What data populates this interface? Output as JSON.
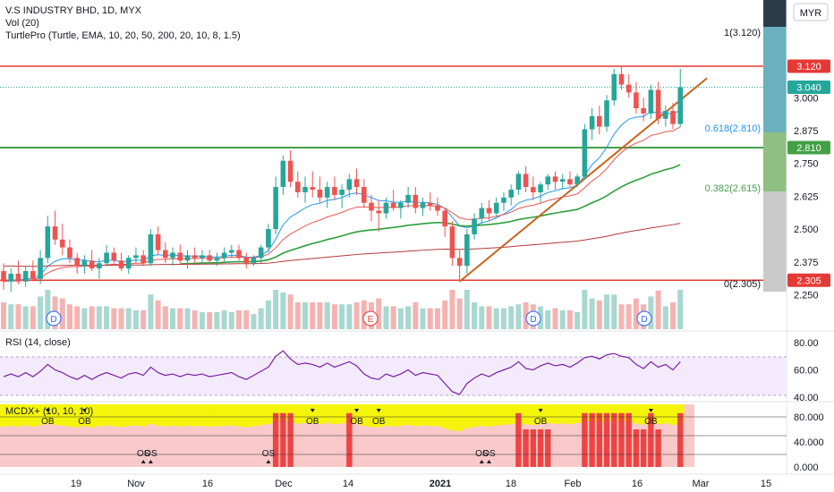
{
  "header": {
    "title": "V.S INDUSTRY BHD, 1D, MYX",
    "vol_label": "Vol (20)",
    "turtle_label": "TurtlePro (Turtle, EMA, 10, 20, 50, 200, 20, 10, 8, 1.5)",
    "currency": "MYR"
  },
  "levels": {
    "fib_top": "1(3.120)",
    "fib_618": "0.618(2.810)",
    "fib_382": "0.382(2.615)",
    "fib_zero": "0(2.305)",
    "price_top_tag": "3.120",
    "price_last_tag": "3.040",
    "price_mid_tag": "2.810",
    "price_low_tag": "2.305"
  },
  "events": [
    "D",
    "E",
    "D",
    "D"
  ],
  "rsi_panel": {
    "label": "RSI (14, close)"
  },
  "mcdx_panel": {
    "label": "MCDX+ (10, 10, 10)",
    "ob_label": "OB",
    "os_label": "OS"
  },
  "colors": {
    "up": "#26a69a",
    "down": "#ef5350",
    "ema_fast": "#2196f3",
    "ema_slow": "#ef5350",
    "ema50": "#2e9e3a",
    "ema200": "#b23a3a",
    "trend": "#c8641e",
    "res": "#e53935",
    "sup": "#43a047",
    "rsi": "#7b1fa2",
    "mcdx_yellow": "#f5f50a",
    "mcdx_red": "#ef4444",
    "mcdx_pink": "#f9c9c9"
  },
  "chart_data": [
    {
      "type": "candlestick",
      "title": "V.S INDUSTRY BHD, 1D, MYX",
      "ylabel": "MYR",
      "ylim": [
        2.18,
        3.27
      ],
      "y_ticks": [
        "3.000",
        "2.875",
        "2.750",
        "2.625",
        "2.500",
        "2.375",
        "2.250"
      ],
      "x_ticks": [
        "19",
        "Nov",
        "16",
        "Dec",
        "14",
        "2021",
        "18",
        "Feb",
        "16",
        "Mar",
        "15"
      ],
      "horizontal_levels": [
        3.12,
        2.81,
        2.305
      ],
      "last_price": 3.04,
      "ohlc": [
        [
          2.34,
          2.37,
          2.27,
          2.3
        ],
        [
          2.3,
          2.35,
          2.26,
          2.33
        ],
        [
          2.33,
          2.38,
          2.29,
          2.3
        ],
        [
          2.3,
          2.36,
          2.28,
          2.34
        ],
        [
          2.34,
          2.38,
          2.3,
          2.31
        ],
        [
          2.31,
          2.42,
          2.29,
          2.39
        ],
        [
          2.39,
          2.55,
          2.37,
          2.51
        ],
        [
          2.51,
          2.57,
          2.44,
          2.46
        ],
        [
          2.46,
          2.52,
          2.4,
          2.43
        ],
        [
          2.43,
          2.46,
          2.37,
          2.39
        ],
        [
          2.39,
          2.41,
          2.33,
          2.36
        ],
        [
          2.36,
          2.4,
          2.33,
          2.38
        ],
        [
          2.38,
          2.42,
          2.34,
          2.35
        ],
        [
          2.35,
          2.39,
          2.31,
          2.37
        ],
        [
          2.37,
          2.44,
          2.36,
          2.41
        ],
        [
          2.41,
          2.43,
          2.36,
          2.38
        ],
        [
          2.38,
          2.41,
          2.34,
          2.35
        ],
        [
          2.35,
          2.4,
          2.33,
          2.39
        ],
        [
          2.39,
          2.43,
          2.37,
          2.4
        ],
        [
          2.4,
          2.42,
          2.36,
          2.37
        ],
        [
          2.37,
          2.5,
          2.36,
          2.48
        ],
        [
          2.48,
          2.51,
          2.4,
          2.42
        ],
        [
          2.42,
          2.45,
          2.37,
          2.39
        ],
        [
          2.39,
          2.43,
          2.36,
          2.41
        ],
        [
          2.41,
          2.44,
          2.37,
          2.38
        ],
        [
          2.38,
          2.42,
          2.35,
          2.4
        ],
        [
          2.4,
          2.43,
          2.37,
          2.39
        ],
        [
          2.39,
          2.42,
          2.37,
          2.4
        ],
        [
          2.4,
          2.42,
          2.37,
          2.38
        ],
        [
          2.38,
          2.41,
          2.36,
          2.39
        ],
        [
          2.39,
          2.43,
          2.37,
          2.41
        ],
        [
          2.41,
          2.44,
          2.39,
          2.42
        ],
        [
          2.42,
          2.44,
          2.38,
          2.39
        ],
        [
          2.39,
          2.41,
          2.35,
          2.37
        ],
        [
          2.37,
          2.4,
          2.36,
          2.39
        ],
        [
          2.39,
          2.44,
          2.37,
          2.43
        ],
        [
          2.43,
          2.52,
          2.41,
          2.5
        ],
        [
          2.5,
          2.7,
          2.48,
          2.66
        ],
        [
          2.66,
          2.78,
          2.63,
          2.76
        ],
        [
          2.76,
          2.8,
          2.66,
          2.68
        ],
        [
          2.68,
          2.72,
          2.62,
          2.64
        ],
        [
          2.64,
          2.7,
          2.6,
          2.66
        ],
        [
          2.66,
          2.72,
          2.62,
          2.65
        ],
        [
          2.65,
          2.7,
          2.6,
          2.62
        ],
        [
          2.62,
          2.68,
          2.58,
          2.66
        ],
        [
          2.66,
          2.7,
          2.61,
          2.63
        ],
        [
          2.63,
          2.67,
          2.58,
          2.65
        ],
        [
          2.65,
          2.71,
          2.62,
          2.69
        ],
        [
          2.69,
          2.73,
          2.63,
          2.66
        ],
        [
          2.66,
          2.69,
          2.58,
          2.6
        ],
        [
          2.6,
          2.63,
          2.53,
          2.57
        ],
        [
          2.57,
          2.61,
          2.49,
          2.56
        ],
        [
          2.56,
          2.62,
          2.54,
          2.6
        ],
        [
          2.6,
          2.65,
          2.57,
          2.58
        ],
        [
          2.58,
          2.61,
          2.54,
          2.6
        ],
        [
          2.6,
          2.66,
          2.58,
          2.63
        ],
        [
          2.63,
          2.66,
          2.56,
          2.58
        ],
        [
          2.58,
          2.62,
          2.55,
          2.6
        ],
        [
          2.6,
          2.64,
          2.57,
          2.59
        ],
        [
          2.59,
          2.62,
          2.55,
          2.57
        ],
        [
          2.57,
          2.58,
          2.47,
          2.51
        ],
        [
          2.51,
          2.53,
          2.36,
          2.39
        ],
        [
          2.39,
          2.42,
          2.3,
          2.36
        ],
        [
          2.36,
          2.5,
          2.33,
          2.48
        ],
        [
          2.48,
          2.56,
          2.46,
          2.54
        ],
        [
          2.54,
          2.6,
          2.52,
          2.58
        ],
        [
          2.58,
          2.61,
          2.53,
          2.56
        ],
        [
          2.56,
          2.62,
          2.55,
          2.6
        ],
        [
          2.6,
          2.64,
          2.57,
          2.62
        ],
        [
          2.62,
          2.67,
          2.59,
          2.65
        ],
        [
          2.65,
          2.72,
          2.63,
          2.71
        ],
        [
          2.71,
          2.74,
          2.64,
          2.66
        ],
        [
          2.66,
          2.7,
          2.61,
          2.64
        ],
        [
          2.64,
          2.68,
          2.6,
          2.67
        ],
        [
          2.67,
          2.71,
          2.65,
          2.7
        ],
        [
          2.7,
          2.72,
          2.65,
          2.68
        ],
        [
          2.68,
          2.71,
          2.65,
          2.69
        ],
        [
          2.69,
          2.72,
          2.66,
          2.67
        ],
        [
          2.67,
          2.71,
          2.66,
          2.7
        ],
        [
          2.7,
          2.9,
          2.69,
          2.88
        ],
        [
          2.88,
          2.96,
          2.84,
          2.93
        ],
        [
          2.93,
          2.97,
          2.86,
          2.89
        ],
        [
          2.89,
          3.01,
          2.87,
          2.99
        ],
        [
          2.99,
          3.11,
          2.97,
          3.09
        ],
        [
          3.09,
          3.12,
          3.03,
          3.05
        ],
        [
          3.05,
          3.09,
          3.0,
          3.02
        ],
        [
          3.02,
          3.06,
          2.94,
          2.96
        ],
        [
          2.96,
          3.0,
          2.91,
          2.94
        ],
        [
          2.94,
          3.05,
          2.92,
          3.03
        ],
        [
          3.03,
          3.06,
          2.9,
          2.92
        ],
        [
          2.92,
          2.97,
          2.89,
          2.95
        ],
        [
          2.95,
          2.98,
          2.88,
          2.9
        ],
        [
          2.9,
          3.11,
          2.89,
          3.04
        ]
      ]
    },
    {
      "type": "line",
      "title": "RSI (14, close)",
      "ylim": [
        38,
        82
      ],
      "y_ticks": [
        "80.00",
        "60.00",
        "40.00"
      ],
      "values": [
        55,
        57,
        55,
        58,
        55,
        59,
        64,
        60,
        58,
        55,
        53,
        56,
        53,
        56,
        58,
        56,
        54,
        57,
        58,
        56,
        62,
        58,
        56,
        57,
        55,
        57,
        56,
        57,
        55,
        56,
        57,
        58,
        55,
        53,
        56,
        59,
        62,
        70,
        74,
        68,
        64,
        65,
        64,
        62,
        65,
        62,
        64,
        66,
        63,
        57,
        54,
        53,
        57,
        55,
        57,
        60,
        56,
        58,
        57,
        56,
        50,
        44,
        42,
        50,
        54,
        57,
        55,
        58,
        60,
        62,
        66,
        61,
        60,
        63,
        65,
        63,
        64,
        62,
        65,
        69,
        70,
        68,
        71,
        72,
        70,
        69,
        64,
        61,
        66,
        62,
        64,
        60,
        66
      ]
    },
    {
      "type": "bar",
      "title": "MCDX+ (10, 10, 10)",
      "y_ticks": [
        "80.000",
        "40.000",
        "0.000"
      ],
      "ylim": [
        0,
        100
      ]
    }
  ]
}
